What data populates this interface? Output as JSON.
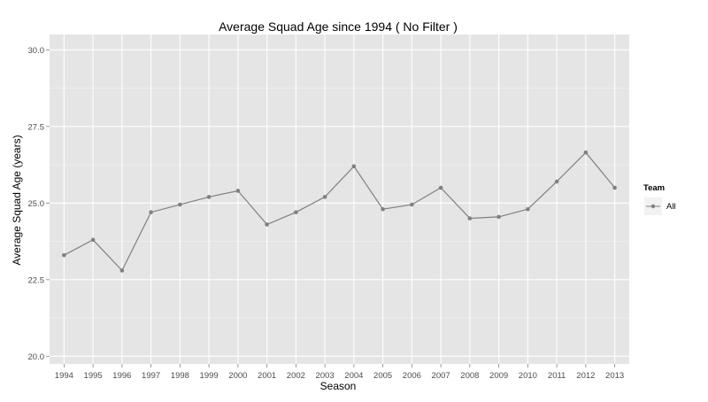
{
  "chart_data": {
    "type": "line",
    "title": "Average Squad Age since 1994 ( No Filter )",
    "xlabel": "Season",
    "ylabel": "Average Squad Age (years)",
    "categories": [
      "1994",
      "1995",
      "1996",
      "1997",
      "1998",
      "1999",
      "2000",
      "2001",
      "2002",
      "2003",
      "2004",
      "2005",
      "2006",
      "2007",
      "2008",
      "2009",
      "2010",
      "2011",
      "2012",
      "2013"
    ],
    "series": [
      {
        "name": "All",
        "color": "#808080",
        "values": [
          23.3,
          23.8,
          22.8,
          24.7,
          24.95,
          25.2,
          25.4,
          24.3,
          24.7,
          25.2,
          26.2,
          24.8,
          24.95,
          25.5,
          24.5,
          24.55,
          24.8,
          25.7,
          26.65,
          25.5
        ]
      }
    ],
    "ylim": [
      19.75,
      30.5
    ],
    "yticks": [
      20.0,
      22.5,
      25.0,
      27.5,
      30.0
    ],
    "ytick_labels": [
      "20.0",
      "22.5",
      "25.0",
      "27.5",
      "30.0"
    ],
    "legend": {
      "title": "Team",
      "placement": "right"
    },
    "grid": true,
    "background": "#e5e5e5",
    "grid_color": "#ffffff"
  }
}
